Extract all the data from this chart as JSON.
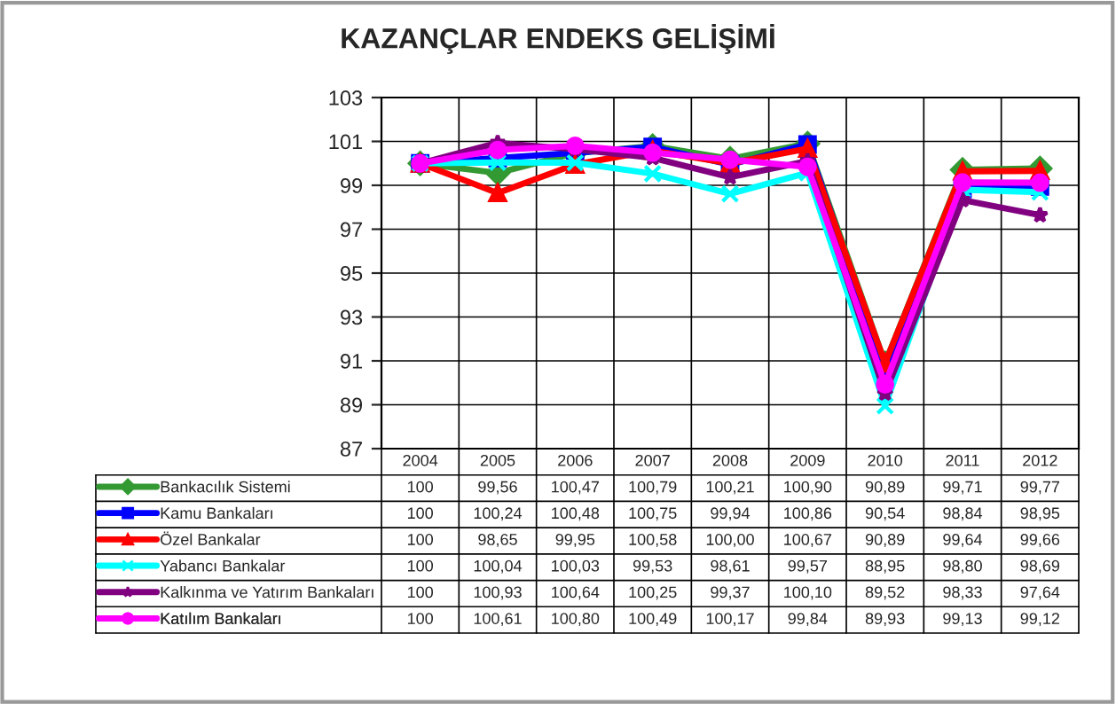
{
  "chart_data": {
    "type": "line",
    "title": "KAZANÇLAR ENDEKS GELİŞİMİ",
    "categories": [
      "2004",
      "2005",
      "2006",
      "2007",
      "2008",
      "2009",
      "2010",
      "2011",
      "2012"
    ],
    "ylim": [
      87,
      103
    ],
    "yticks": [
      87,
      89,
      91,
      93,
      95,
      97,
      99,
      101,
      103
    ],
    "grid": true,
    "legend": "bottom",
    "series": [
      {
        "name": "Bankacılık Sistemi",
        "color": "#339933",
        "marker": "diamond",
        "values": [
          100,
          99.56,
          100.47,
          100.79,
          100.21,
          100.9,
          90.89,
          99.71,
          99.77
        ],
        "value_labels": [
          "100",
          "99,56",
          "100,47",
          "100,79",
          "100,21",
          "100,90",
          "90,89",
          "99,71",
          "99,77"
        ]
      },
      {
        "name": "Kamu Bankaları",
        "color": "#0000ff",
        "marker": "square",
        "values": [
          100,
          100.24,
          100.48,
          100.75,
          99.94,
          100.86,
          90.54,
          98.84,
          98.95
        ],
        "value_labels": [
          "100",
          "100,24",
          "100,48",
          "100,75",
          "99,94",
          "100,86",
          "90,54",
          "98,84",
          "98,95"
        ]
      },
      {
        "name": "Özel Bankalar",
        "color": "#ff0000",
        "marker": "triangle",
        "values": [
          100,
          98.65,
          99.95,
          100.58,
          100.0,
          100.67,
          90.89,
          99.64,
          99.66
        ],
        "value_labels": [
          "100",
          "98,65",
          "99,95",
          "100,58",
          "100,00",
          "100,67",
          "90,89",
          "99,64",
          "99,66"
        ]
      },
      {
        "name": "Yabancı Bankalar",
        "color": "#00ffff",
        "marker": "cross",
        "values": [
          100,
          100.04,
          100.03,
          99.53,
          98.61,
          99.57,
          88.95,
          98.8,
          98.69
        ],
        "value_labels": [
          "100",
          "100,04",
          "100,03",
          "99,53",
          "98,61",
          "99,57",
          "88,95",
          "98,80",
          "98,69"
        ]
      },
      {
        "name": "Kalkınma ve Yatırım Bankaları",
        "color": "#800080",
        "marker": "star",
        "values": [
          100,
          100.93,
          100.64,
          100.25,
          99.37,
          100.1,
          89.52,
          98.33,
          97.64
        ],
        "value_labels": [
          "100",
          "100,93",
          "100,64",
          "100,25",
          "99,37",
          "100,10",
          "89,52",
          "98,33",
          "97,64"
        ]
      },
      {
        "name": "Katılım Bankaları",
        "color": "#ff00ff",
        "marker": "circle",
        "values": [
          100,
          100.61,
          100.8,
          100.49,
          100.17,
          99.84,
          89.93,
          99.13,
          99.12
        ],
        "value_labels": [
          "100",
          "100,61",
          "100,80",
          "100,49",
          "100,17",
          "99,84",
          "89,93",
          "99,13",
          "99,12"
        ]
      }
    ]
  }
}
